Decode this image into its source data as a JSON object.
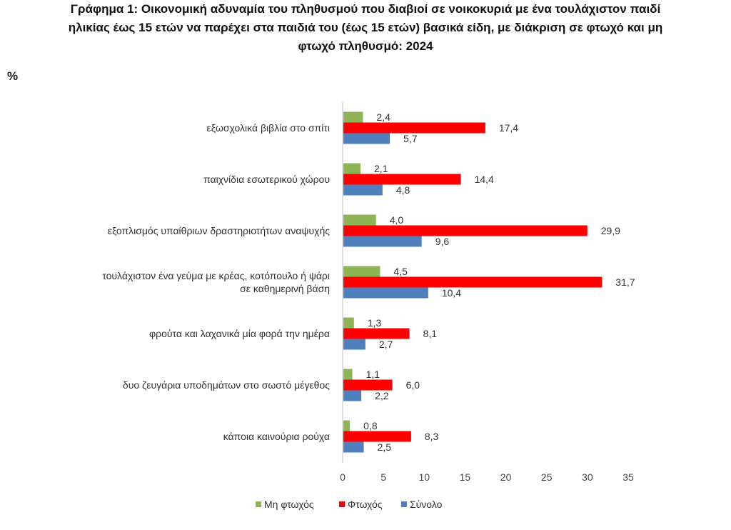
{
  "title_lines": [
    "Γράφημα 1: Οικονομική αδυναμία του πληθυσμού που διαβιοί σε νοικοκυριά με ένα τουλάχιστον παιδί",
    "ηλικίας έως 15 ετών να παρέχει στα παιδιά του (έως 15 ετών) βασικά είδη, με διάκριση σε φτωχό και μη",
    "φτωχό πληθυσμό: 2024"
  ],
  "unit_label": "%",
  "chart_data": {
    "type": "bar",
    "orientation": "horizontal",
    "title": "Γράφημα 1: Οικονομική αδυναμία του πληθυσμού που διαβιοί σε νοικοκυριά με ένα τουλάχιστον παιδί ηλικίας έως 15 ετών να παρέχει στα παιδιά του (έως 15 ετών) βασικά είδη, με διάκριση σε φτωχό και μη φτωχό πληθυσμό: 2024",
    "ylabel": "%",
    "categories": [
      [
        "εξωσχολικά βιβλία στο σπίτι"
      ],
      [
        "παιχνίδια εσωτερικού χώρου"
      ],
      [
        "εξοπλισμός υπαίθριων δραστηριοτήτων αναψυχής"
      ],
      [
        "τουλάχιστον ένα γεύμα με κρέας, κοτόπουλο ή ψάρι",
        "σε καθημερινή βάση"
      ],
      [
        "φρούτα και λαχανικά μία φορά την ημέρα"
      ],
      [
        "δυο ζευγάρια υποδημάτων στο σωστό μέγεθος"
      ],
      [
        "κάποια καινούρια ρούχα"
      ]
    ],
    "series": [
      {
        "name": "Μη φτωχός",
        "color": "#8db455",
        "values": [
          2.4,
          2.1,
          4.0,
          4.5,
          1.3,
          1.1,
          0.8
        ],
        "labels": [
          "2,4",
          "2,1",
          "4,0",
          "4,5",
          "1,3",
          "1,1",
          "0,8"
        ]
      },
      {
        "name": "Φτωχός",
        "color": "#ff0000",
        "values": [
          17.4,
          14.4,
          29.9,
          31.7,
          8.1,
          6.0,
          8.3
        ],
        "labels": [
          "17,4",
          "14,4",
          "29,9",
          "31,7",
          "8,1",
          "6,0",
          "8,3"
        ]
      },
      {
        "name": "Σύνολο",
        "color": "#4f7fbf",
        "values": [
          5.7,
          4.8,
          9.6,
          10.4,
          2.7,
          2.2,
          2.5
        ],
        "labels": [
          "5,7",
          "4,8",
          "9,6",
          "10,4",
          "2,7",
          "2,2",
          "2,5"
        ]
      }
    ],
    "xlim": [
      0,
      35
    ],
    "xticks": [
      0,
      5,
      10,
      15,
      20,
      25,
      30,
      35
    ],
    "grid": false,
    "legend_position": "bottom"
  }
}
